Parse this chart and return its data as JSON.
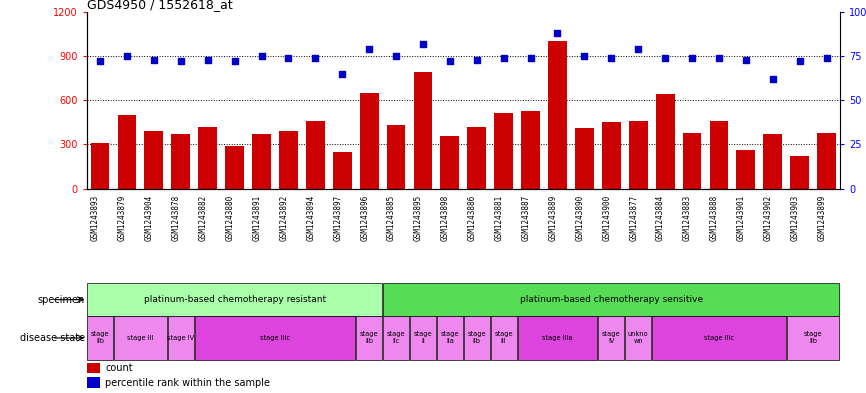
{
  "title": "GDS4950 / 1552618_at",
  "samples": [
    "GSM1243893",
    "GSM1243879",
    "GSM1243904",
    "GSM1243878",
    "GSM1243882",
    "GSM1243880",
    "GSM1243891",
    "GSM1243892",
    "GSM1243894",
    "GSM1243897",
    "GSM1243896",
    "GSM1243885",
    "GSM1243895",
    "GSM1243898",
    "GSM1243886",
    "GSM1243881",
    "GSM1243887",
    "GSM1243889",
    "GSM1243890",
    "GSM1243900",
    "GSM1243877",
    "GSM1243884",
    "GSM1243883",
    "GSM1243888",
    "GSM1243901",
    "GSM1243902",
    "GSM1243903",
    "GSM1243899"
  ],
  "counts": [
    310,
    500,
    390,
    370,
    420,
    290,
    370,
    390,
    460,
    250,
    650,
    430,
    790,
    360,
    420,
    510,
    530,
    1000,
    410,
    450,
    460,
    640,
    380,
    460,
    260,
    370,
    220,
    380
  ],
  "percentiles": [
    72,
    75,
    73,
    72,
    73,
    72,
    75,
    74,
    74,
    65,
    79,
    75,
    82,
    72,
    73,
    74,
    74,
    88,
    75,
    74,
    79,
    74,
    74,
    74,
    73,
    62,
    72,
    74
  ],
  "ylim_left": [
    0,
    1200
  ],
  "ylim_right": [
    0,
    100
  ],
  "yticks_left": [
    0,
    300,
    600,
    900,
    1200
  ],
  "yticks_right": [
    0,
    25,
    50,
    75,
    100
  ],
  "bar_color": "#cc0000",
  "dot_color": "#0000cc",
  "bg_color": "#ffffff",
  "label_bg": "#cccccc",
  "specimen_groups": [
    {
      "label": "platinum-based chemotherapy resistant",
      "start": 0,
      "end": 11,
      "color": "#aaffaa"
    },
    {
      "label": "platinum-based chemotherapy sensitive",
      "start": 11,
      "end": 28,
      "color": "#55dd55"
    }
  ],
  "disease_states": [
    {
      "label": "stage\nIIb",
      "start": 0,
      "end": 1,
      "color": "#ee88ee"
    },
    {
      "label": "stage III",
      "start": 1,
      "end": 3,
      "color": "#ee88ee"
    },
    {
      "label": "stage IV",
      "start": 3,
      "end": 4,
      "color": "#ee88ee"
    },
    {
      "label": "stage IIIc",
      "start": 4,
      "end": 10,
      "color": "#dd44dd"
    },
    {
      "label": "stage\nIIb",
      "start": 10,
      "end": 11,
      "color": "#ee88ee"
    },
    {
      "label": "stage\nIIc",
      "start": 11,
      "end": 12,
      "color": "#ee88ee"
    },
    {
      "label": "stage\nII",
      "start": 12,
      "end": 13,
      "color": "#ee88ee"
    },
    {
      "label": "stage\nIIa",
      "start": 13,
      "end": 14,
      "color": "#ee88ee"
    },
    {
      "label": "stage\nIIb",
      "start": 14,
      "end": 15,
      "color": "#ee88ee"
    },
    {
      "label": "stage\nIII",
      "start": 15,
      "end": 16,
      "color": "#ee88ee"
    },
    {
      "label": "stage IIIa",
      "start": 16,
      "end": 19,
      "color": "#dd44dd"
    },
    {
      "label": "stage\nIV",
      "start": 19,
      "end": 20,
      "color": "#ee88ee"
    },
    {
      "label": "unkno\nwn",
      "start": 20,
      "end": 21,
      "color": "#ee88ee"
    },
    {
      "label": "stage IIIc",
      "start": 21,
      "end": 26,
      "color": "#dd44dd"
    },
    {
      "label": "stage\nIIb",
      "start": 26,
      "end": 28,
      "color": "#ee88ee"
    }
  ]
}
